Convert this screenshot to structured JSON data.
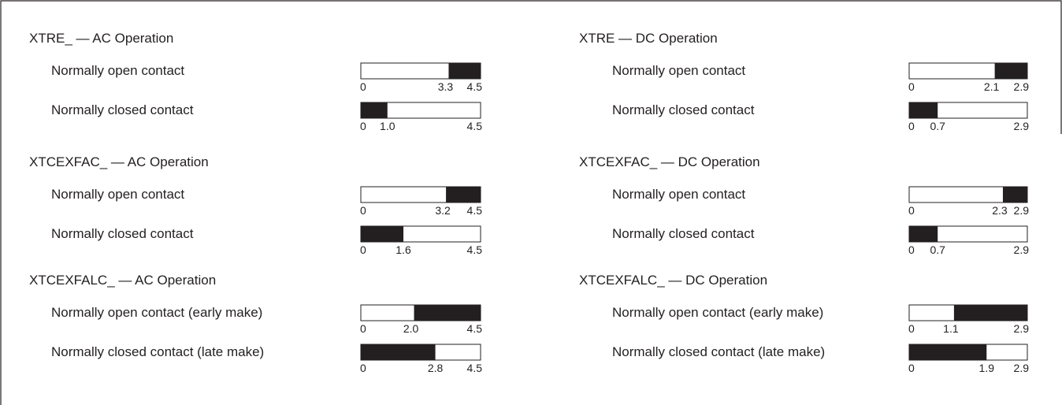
{
  "columns": [
    {
      "sections": [
        {
          "title": "XTRE_ — AC Operation",
          "rows": [
            {
              "label": "Normally open contact",
              "ticks": [
                0,
                3.3,
                4.5
              ],
              "fill": "right"
            },
            {
              "label": "Normally closed contact",
              "ticks": [
                0,
                {
                  "value": 1,
                  "label": "1.0"
                },
                4.5
              ],
              "fill": "left"
            }
          ]
        },
        {
          "title": "XTCEXFAC_ — AC Operation",
          "rows": [
            {
              "label": "Normally open contact",
              "ticks": [
                0,
                3.2,
                4.5
              ],
              "fill": "right"
            },
            {
              "label": "Normally closed contact",
              "ticks": [
                0,
                1.6,
                4.5
              ],
              "fill": "left"
            }
          ]
        },
        {
          "title": "XTCEXFALC_ — AC Operation",
          "rows": [
            {
              "label": "Normally open contact (early make)",
              "ticks": [
                0,
                {
                  "value": 2,
                  "label": "2.0"
                },
                4.5
              ],
              "fill": "right"
            },
            {
              "label": "Normally closed contact (late make)",
              "ticks": [
                0,
                2.8,
                4.5
              ],
              "fill": "left"
            }
          ]
        }
      ]
    },
    {
      "sections": [
        {
          "title": "XTRE — DC Operation",
          "rows": [
            {
              "label": "Normally open contact",
              "ticks": [
                0,
                2.1,
                2.9
              ],
              "fill": "right"
            },
            {
              "label": "Normally closed contact",
              "ticks": [
                0,
                0.7,
                2.9
              ],
              "fill": "left"
            }
          ]
        },
        {
          "title": "XTCEXFAC_ — DC Operation",
          "rows": [
            {
              "label": "Normally open contact",
              "ticks": [
                0,
                2.3,
                2.9
              ],
              "fill": "right"
            },
            {
              "label": "Normally closed contact",
              "ticks": [
                0,
                0.7,
                2.9
              ],
              "fill": "left"
            }
          ]
        },
        {
          "title": "XTCEXFALC_ — DC Operation",
          "rows": [
            {
              "label": "Normally open contact (early make)",
              "ticks": [
                0,
                1.1,
                2.9
              ],
              "fill": "right"
            },
            {
              "label": "Normally closed contact (late make)",
              "ticks": [
                0,
                1.9,
                2.9
              ],
              "fill": "left"
            }
          ]
        }
      ]
    }
  ]
}
